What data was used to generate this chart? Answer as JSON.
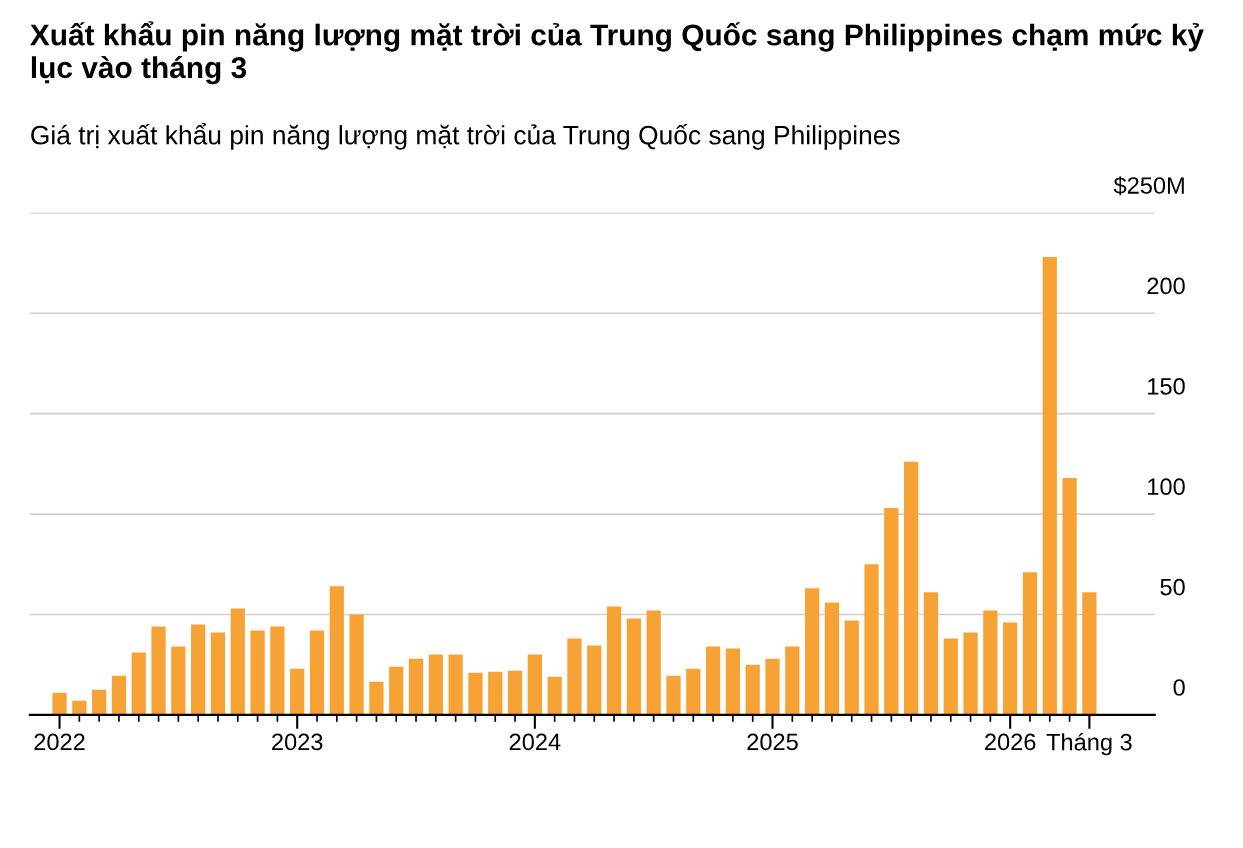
{
  "chart_data": {
    "type": "bar",
    "title": "Xuất khẩu pin năng lượng mặt trời của Trung Quốc sang Philippines chạm mức kỷ lục vào tháng 3",
    "subtitle": "Giá trị xuất khẩu pin năng lượng mặt trời của Trung Quốc sang Philippines",
    "categories": [
      "2022",
      null,
      null,
      null,
      null,
      null,
      null,
      null,
      null,
      null,
      null,
      null,
      "2023",
      null,
      null,
      null,
      null,
      null,
      null,
      null,
      null,
      null,
      null,
      null,
      "2024",
      null,
      null,
      null,
      null,
      null,
      null,
      null,
      null,
      null,
      null,
      null,
      "2025",
      null,
      null,
      null,
      null,
      null,
      null,
      null,
      null,
      null,
      null,
      null,
      "2026",
      null,
      null,
      null,
      "Tháng 3"
    ],
    "values": [
      11,
      7,
      12.5,
      19.5,
      31,
      44,
      34,
      45,
      41,
      53,
      42,
      44,
      23,
      42,
      64,
      50,
      16.5,
      24,
      28,
      30,
      30,
      21,
      21.5,
      22,
      30,
      19,
      38,
      34.5,
      54,
      48,
      52,
      19.5,
      23,
      34,
      33,
      25,
      28,
      34,
      63,
      56,
      47,
      75,
      103,
      126,
      61,
      38,
      41,
      52,
      46,
      71,
      228,
      118,
      61
    ],
    "color": "#f7a234",
    "ylim": [
      0,
      250
    ],
    "yticks": [
      0,
      50,
      100,
      150,
      200,
      {
        "value": 250,
        "label": "$250M"
      }
    ],
    "grid": "y"
  }
}
